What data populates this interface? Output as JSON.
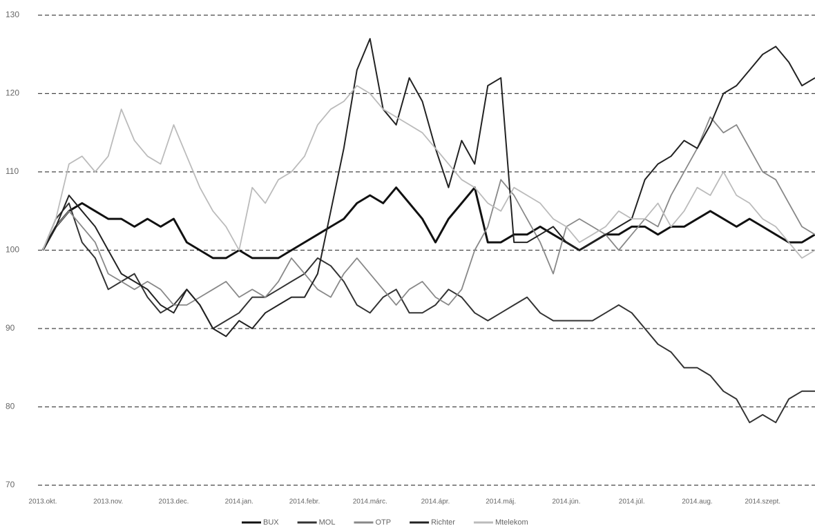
{
  "chart_data": {
    "type": "line",
    "categories": [
      "2013.okt.",
      null,
      null,
      null,
      null,
      "2013.nov.",
      null,
      null,
      null,
      null,
      "2013.dec.",
      null,
      null,
      null,
      null,
      "2014.jan.",
      null,
      null,
      null,
      null,
      "2014.febr.",
      null,
      null,
      null,
      null,
      "2014.márc.",
      null,
      null,
      null,
      null,
      "2014.ápr.",
      null,
      null,
      null,
      null,
      "2014.máj.",
      null,
      null,
      null,
      null,
      "2014.jún.",
      null,
      null,
      null,
      null,
      "2014.júl.",
      null,
      null,
      null,
      null,
      "2014.aug.",
      null,
      null,
      null,
      null,
      "2014.szept.",
      null,
      null,
      null,
      null
    ],
    "series": [
      {
        "name": "BUX",
        "color": "#111111",
        "values": [
          100,
          103,
          105,
          106,
          105,
          104,
          104,
          103,
          104,
          103,
          104,
          101,
          100,
          99,
          99,
          100,
          99,
          99,
          99,
          100,
          101,
          102,
          103,
          104,
          106,
          107,
          106,
          108,
          106,
          104,
          101,
          104,
          106,
          108,
          101,
          101,
          102,
          102,
          103,
          102,
          101,
          100,
          101,
          102,
          102,
          103,
          103,
          102,
          103,
          103,
          104,
          105,
          104,
          103,
          104,
          103,
          102,
          101,
          101,
          102
        ]
      },
      {
        "name": "MOL",
        "color": "#333333",
        "values": [
          100,
          104,
          106,
          101,
          99,
          95,
          96,
          97,
          94,
          92,
          93,
          95,
          93,
          90,
          91,
          92,
          94,
          94,
          95,
          96,
          97,
          99,
          98,
          96,
          93,
          92,
          94,
          95,
          92,
          92,
          93,
          95,
          94,
          92,
          91,
          92,
          93,
          94,
          92,
          91,
          91,
          91,
          91,
          92,
          93,
          92,
          90,
          88,
          87,
          85,
          85,
          84,
          82,
          81,
          78,
          79,
          78,
          81,
          82,
          82
        ]
      },
      {
        "name": "OTP",
        "color": "#888888",
        "values": [
          100,
          103,
          105,
          103,
          101,
          97,
          96,
          95,
          96,
          95,
          93,
          93,
          94,
          95,
          96,
          94,
          95,
          94,
          96,
          99,
          97,
          95,
          94,
          97,
          99,
          97,
          95,
          93,
          95,
          96,
          94,
          93,
          95,
          100,
          103,
          109,
          107,
          104,
          101,
          97,
          103,
          104,
          103,
          102,
          100,
          102,
          104,
          103,
          107,
          110,
          113,
          117,
          115,
          116,
          113,
          110,
          109,
          106,
          103,
          102
        ]
      },
      {
        "name": "Richter",
        "color": "#222222",
        "values": [
          100,
          103,
          107,
          105,
          103,
          100,
          97,
          96,
          95,
          93,
          92,
          95,
          93,
          90,
          89,
          91,
          90,
          92,
          93,
          94,
          94,
          97,
          105,
          113,
          123,
          127,
          118,
          116,
          122,
          119,
          113,
          108,
          114,
          111,
          121,
          122,
          101,
          101,
          102,
          103,
          101,
          100,
          101,
          102,
          103,
          104,
          109,
          111,
          112,
          114,
          113,
          116,
          120,
          121,
          123,
          125,
          126,
          124,
          121,
          122
        ]
      },
      {
        "name": "Mtelekom",
        "color": "#bbbbbb",
        "values": [
          100,
          104,
          111,
          112,
          110,
          112,
          118,
          114,
          112,
          111,
          116,
          112,
          108,
          105,
          103,
          100,
          108,
          106,
          109,
          110,
          112,
          116,
          118,
          119,
          121,
          120,
          118,
          117,
          116,
          115,
          113,
          111,
          109,
          108,
          106,
          105,
          108,
          107,
          106,
          104,
          103,
          101,
          102,
          103,
          105,
          104,
          104,
          106,
          103,
          105,
          108,
          107,
          110,
          107,
          106,
          104,
          103,
          101,
          99,
          100
        ]
      }
    ],
    "ylim": [
      70,
      130
    ],
    "yticks": [
      70,
      80,
      90,
      100,
      110,
      120,
      130
    ],
    "grid": true,
    "legend": "bottom"
  }
}
